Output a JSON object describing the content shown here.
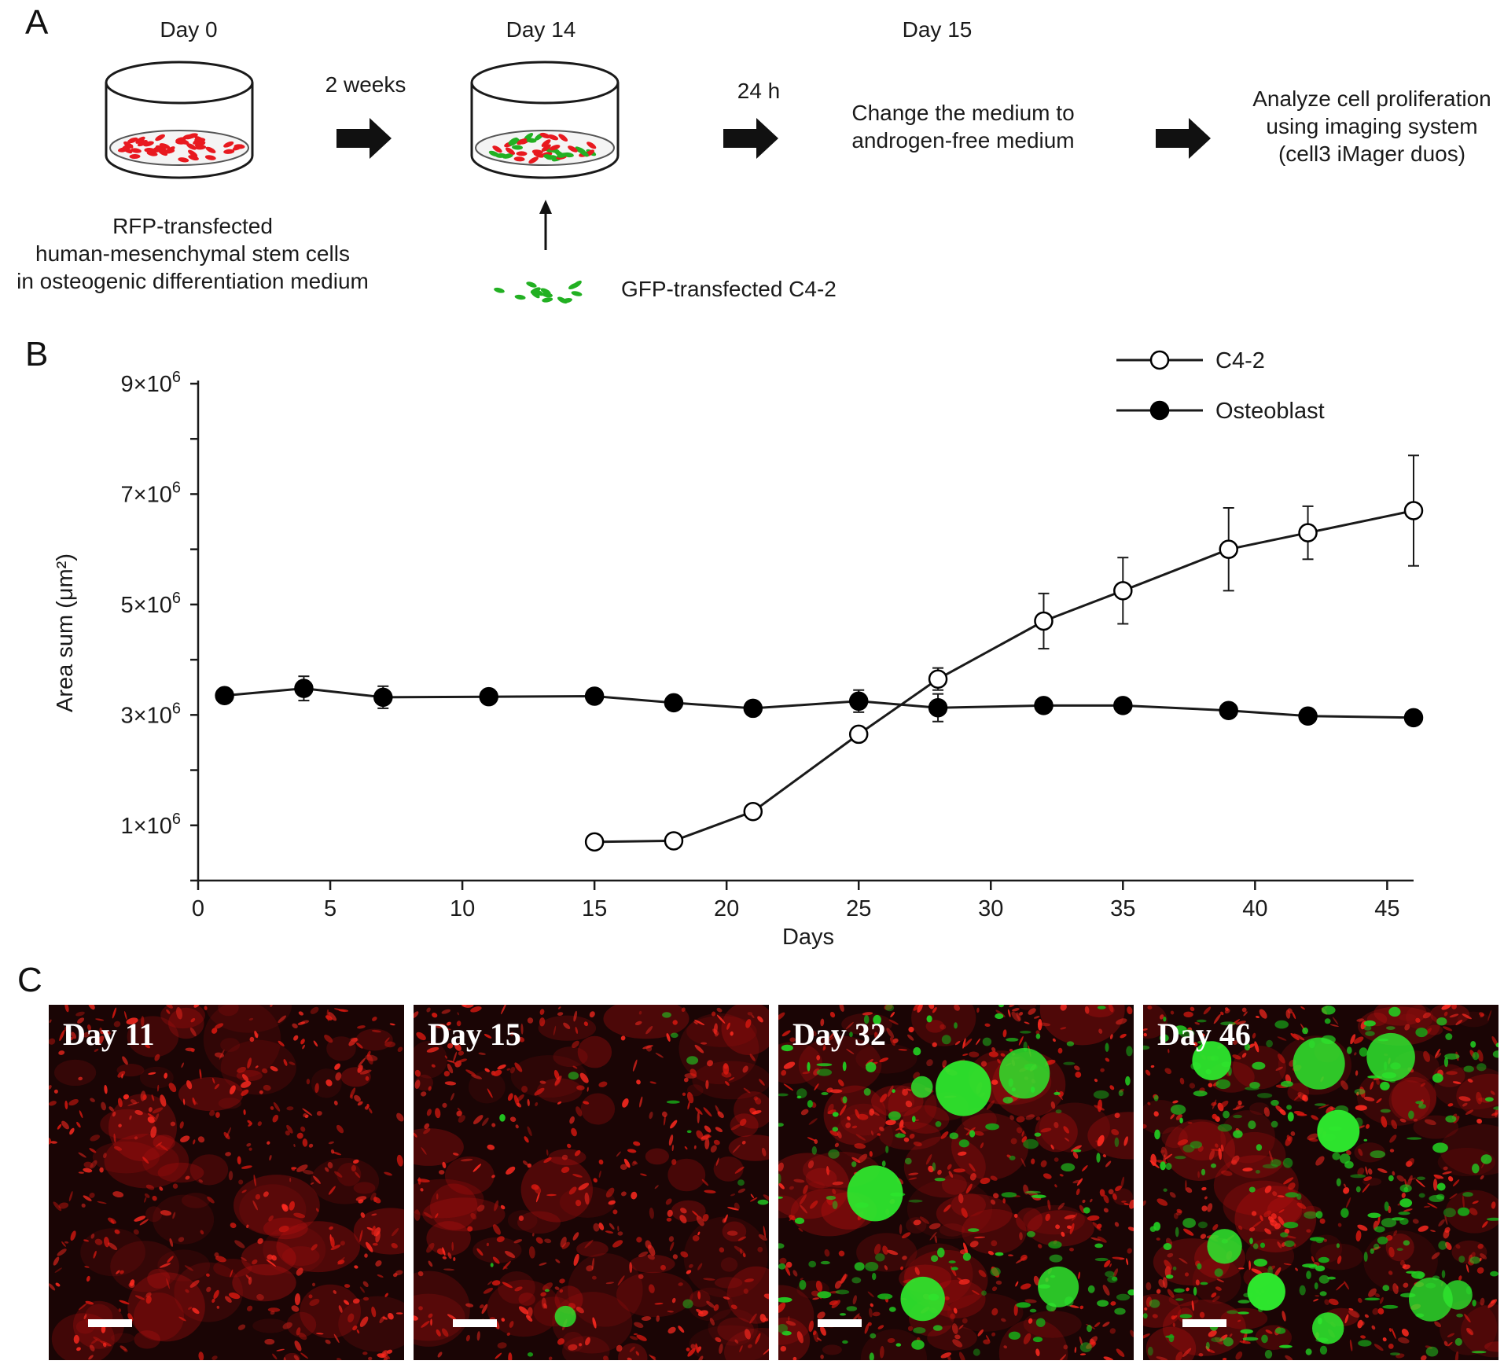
{
  "panel_a": {
    "letter": "A",
    "steps": {
      "day0": "Day 0",
      "arrow1": "2 weeks",
      "day14": "Day 14",
      "arrow2": "24 h",
      "day15": "Day 15",
      "medium_change": [
        "Change the medium to",
        "androgen-free medium"
      ],
      "analyze": [
        "Analyze cell proliferation",
        "using imaging system",
        "(cell3 iMager duos)"
      ]
    },
    "dish1_caption": [
      "RFP-transfected",
      "human-mesenchymal stem cells",
      "in osteogenic differentiation medium"
    ],
    "added_cells": "GFP-transfected C4-2",
    "colors": {
      "rfp": "#e8191f",
      "gfp": "#22b022"
    }
  },
  "panel_b": {
    "letter": "B",
    "chart_data": {
      "type": "line",
      "xlabel": "Days",
      "ylabel": "Area sum (μm²)",
      "xlim": [
        0,
        46
      ],
      "ylim": [
        0,
        9000000
      ],
      "x_ticks": [
        0,
        5,
        10,
        15,
        20,
        25,
        30,
        35,
        40,
        45
      ],
      "y_ticks": [
        {
          "value": 1000000,
          "label": "1×10",
          "exp": "6"
        },
        {
          "value": 3000000,
          "label": "3×10",
          "exp": "6"
        },
        {
          "value": 5000000,
          "label": "5×10",
          "exp": "6"
        },
        {
          "value": 7000000,
          "label": "7×10",
          "exp": "6"
        },
        {
          "value": 9000000,
          "label": "9×10",
          "exp": "6"
        }
      ],
      "legend_position": "top-right",
      "series": [
        {
          "name": "C4-2",
          "marker": "open-circle",
          "x": [
            15,
            18,
            21,
            25,
            28,
            32,
            35,
            39,
            42,
            46
          ],
          "y": [
            700000,
            720000,
            1250000,
            2650000,
            3650000,
            4700000,
            5250000,
            6000000,
            6300000,
            6700000
          ],
          "err": [
            0,
            0,
            0,
            0,
            200000,
            500000,
            600000,
            750000,
            480000,
            1000000
          ]
        },
        {
          "name": "Osteoblast",
          "marker": "filled-circle",
          "x": [
            1,
            4,
            7,
            11,
            15,
            18,
            21,
            25,
            28,
            32,
            35,
            39,
            42,
            46
          ],
          "y": [
            3350000,
            3480000,
            3320000,
            3330000,
            3340000,
            3220000,
            3120000,
            3250000,
            3130000,
            3170000,
            3170000,
            3080000,
            2980000,
            2950000
          ],
          "err": [
            0,
            220000,
            200000,
            0,
            0,
            0,
            0,
            200000,
            250000,
            0,
            0,
            0,
            0,
            0
          ]
        }
      ]
    }
  },
  "panel_c": {
    "letter": "C",
    "images": [
      {
        "label": "Day 11",
        "green": 0.0
      },
      {
        "label": "Day 15",
        "green": 0.05
      },
      {
        "label": "Day 32",
        "green": 0.55
      },
      {
        "label": "Day 46",
        "green": 0.85
      }
    ]
  }
}
